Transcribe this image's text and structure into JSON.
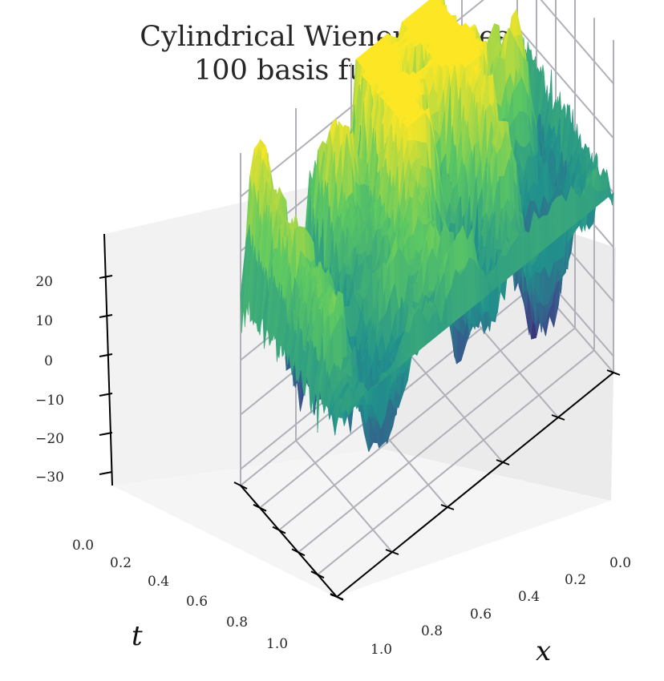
{
  "chart_data": {
    "type": "surface3d",
    "title": "Cylindrical Wiener process",
    "subtitle": "100 basis functions",
    "xlabel": "x",
    "ylabel": "t",
    "zlabel": "",
    "x_ticks": [
      "0.0",
      "0.2",
      "0.4",
      "0.6",
      "0.8",
      "1.0"
    ],
    "t_ticks": [
      "0.0",
      "0.2",
      "0.4",
      "0.6",
      "0.8",
      "1.0"
    ],
    "z_ticks": [
      "20",
      "10",
      "0",
      "−10",
      "−20",
      "−30"
    ],
    "x_range": [
      0,
      1
    ],
    "t_range": [
      0,
      1
    ],
    "z_range": [
      -33,
      28
    ],
    "colormap": "viridis",
    "grid": true,
    "surface_summary": {
      "at_t0": 0,
      "max_approx": 26,
      "min_approx": -33
    }
  }
}
